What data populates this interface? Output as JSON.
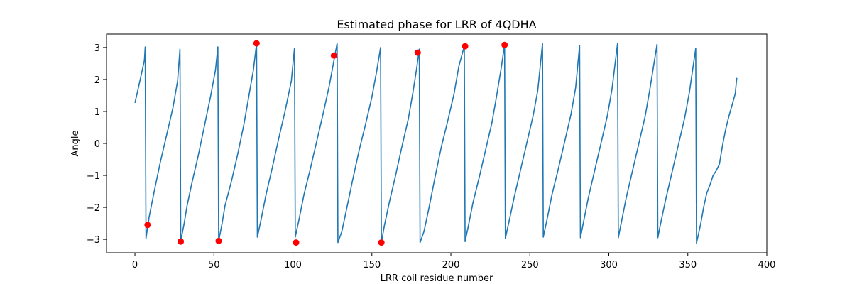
{
  "chart_data": {
    "type": "line",
    "title": "Estimated phase for LRR of 4QDHA",
    "xlabel": "LRR coil residue number",
    "ylabel": "Angle",
    "xlim": [
      -18,
      400
    ],
    "ylim": [
      -3.42,
      3.42
    ],
    "xticks": [
      0,
      50,
      100,
      150,
      200,
      250,
      300,
      350,
      400
    ],
    "yticks": [
      -3,
      -2,
      -1,
      0,
      1,
      2,
      3
    ],
    "grid": false,
    "line_color": "#1f77b4",
    "marker_color": "#ff0000",
    "series": [
      {
        "values": [
          [
            0,
            1.27
          ],
          [
            2,
            1.7
          ],
          [
            4,
            2.15
          ],
          [
            6,
            2.6
          ],
          [
            6.5,
            3.02
          ],
          [
            7,
            -2.97
          ],
          [
            9,
            -2.3
          ],
          [
            12,
            -1.55
          ],
          [
            16,
            -0.6
          ],
          [
            20,
            0.25
          ],
          [
            24,
            1.1
          ],
          [
            27,
            1.95
          ],
          [
            28.5,
            2.95
          ],
          [
            29,
            -3.05
          ],
          [
            31,
            -2.55
          ],
          [
            33,
            -1.95
          ],
          [
            36,
            -1.25
          ],
          [
            40,
            -0.4
          ],
          [
            44,
            0.55
          ],
          [
            48,
            1.5
          ],
          [
            51,
            2.3
          ],
          [
            52.5,
            3.02
          ],
          [
            53,
            -3.05
          ],
          [
            55,
            -2.55
          ],
          [
            57,
            -1.95
          ],
          [
            61,
            -1.2
          ],
          [
            65,
            -0.35
          ],
          [
            69,
            0.6
          ],
          [
            72,
            1.45
          ],
          [
            75,
            2.3
          ],
          [
            77,
            3.12
          ],
          [
            77.5,
            -2.93
          ],
          [
            80,
            -2.35
          ],
          [
            83,
            -1.6
          ],
          [
            87,
            -0.75
          ],
          [
            91,
            0.15
          ],
          [
            95,
            1.0
          ],
          [
            99,
            1.95
          ],
          [
            101,
            2.98
          ],
          [
            101.5,
            -2.93
          ],
          [
            104,
            -2.35
          ],
          [
            107,
            -1.6
          ],
          [
            111,
            -0.8
          ],
          [
            115,
            0.05
          ],
          [
            119,
            0.9
          ],
          [
            123,
            1.8
          ],
          [
            126,
            2.6
          ],
          [
            128,
            3.13
          ],
          [
            128.5,
            -3.1
          ],
          [
            131,
            -2.75
          ],
          [
            134,
            -2.05
          ],
          [
            138,
            -1.1
          ],
          [
            142,
            -0.2
          ],
          [
            146,
            0.6
          ],
          [
            150,
            1.45
          ],
          [
            153,
            2.25
          ],
          [
            155.5,
            3.0
          ],
          [
            156,
            -3.1
          ],
          [
            158,
            -2.55
          ],
          [
            161,
            -1.85
          ],
          [
            165,
            -1.0
          ],
          [
            169,
            -0.1
          ],
          [
            173,
            0.75
          ],
          [
            176,
            1.6
          ],
          [
            178.5,
            2.4
          ],
          [
            180,
            2.95
          ],
          [
            180.5,
            -3.1
          ],
          [
            183,
            -2.75
          ],
          [
            186,
            -2.05
          ],
          [
            190,
            -1.05
          ],
          [
            194,
            -0.1
          ],
          [
            198,
            0.7
          ],
          [
            202,
            1.55
          ],
          [
            205,
            2.4
          ],
          [
            208.5,
            3.05
          ],
          [
            209,
            -3.07
          ],
          [
            211,
            -2.6
          ],
          [
            214,
            -1.85
          ],
          [
            218,
            -1.05
          ],
          [
            222,
            -0.2
          ],
          [
            226,
            0.65
          ],
          [
            229,
            1.5
          ],
          [
            232,
            2.4
          ],
          [
            234,
            3.1
          ],
          [
            234.5,
            -2.97
          ],
          [
            237,
            -2.4
          ],
          [
            240,
            -1.7
          ],
          [
            244,
            -0.85
          ],
          [
            248,
            0.0
          ],
          [
            252,
            0.85
          ],
          [
            255,
            1.65
          ],
          [
            258,
            3.12
          ],
          [
            258.5,
            -2.93
          ],
          [
            261,
            -2.35
          ],
          [
            264,
            -1.6
          ],
          [
            268,
            -0.8
          ],
          [
            272,
            0.05
          ],
          [
            276,
            0.9
          ],
          [
            279,
            1.75
          ],
          [
            281.5,
            3.07
          ],
          [
            282,
            -2.95
          ],
          [
            284,
            -2.45
          ],
          [
            287,
            -1.7
          ],
          [
            291,
            -0.85
          ],
          [
            295,
            0.0
          ],
          [
            299,
            0.85
          ],
          [
            302,
            1.7
          ],
          [
            305.5,
            3.12
          ],
          [
            306,
            -2.95
          ],
          [
            308,
            -2.45
          ],
          [
            311,
            -1.7
          ],
          [
            315,
            -0.85
          ],
          [
            319,
            0.0
          ],
          [
            323,
            0.85
          ],
          [
            326,
            1.7
          ],
          [
            330.5,
            3.1
          ],
          [
            331,
            -2.95
          ],
          [
            333,
            -2.45
          ],
          [
            336,
            -1.75
          ],
          [
            340,
            -0.9
          ],
          [
            344,
            -0.05
          ],
          [
            348,
            0.8
          ],
          [
            351,
            1.6
          ],
          [
            355,
            2.97
          ],
          [
            355.5,
            -3.12
          ],
          [
            358,
            -2.55
          ],
          [
            360,
            -2.0
          ],
          [
            362,
            -1.55
          ],
          [
            364,
            -1.3
          ],
          [
            366,
            -1.0
          ],
          [
            368,
            -0.85
          ],
          [
            370,
            -0.65
          ],
          [
            372,
            -0.05
          ],
          [
            374,
            0.45
          ],
          [
            376,
            0.85
          ],
          [
            378,
            1.2
          ],
          [
            380,
            1.55
          ],
          [
            381,
            2.05
          ]
        ]
      }
    ],
    "markers": [
      [
        8,
        -2.55
      ],
      [
        29,
        -3.07
      ],
      [
        53,
        -3.05
      ],
      [
        77,
        3.13
      ],
      [
        102,
        -3.1
      ],
      [
        126,
        2.75
      ],
      [
        156,
        -3.1
      ],
      [
        179,
        2.84
      ],
      [
        209,
        3.04
      ],
      [
        234,
        3.08
      ]
    ]
  }
}
